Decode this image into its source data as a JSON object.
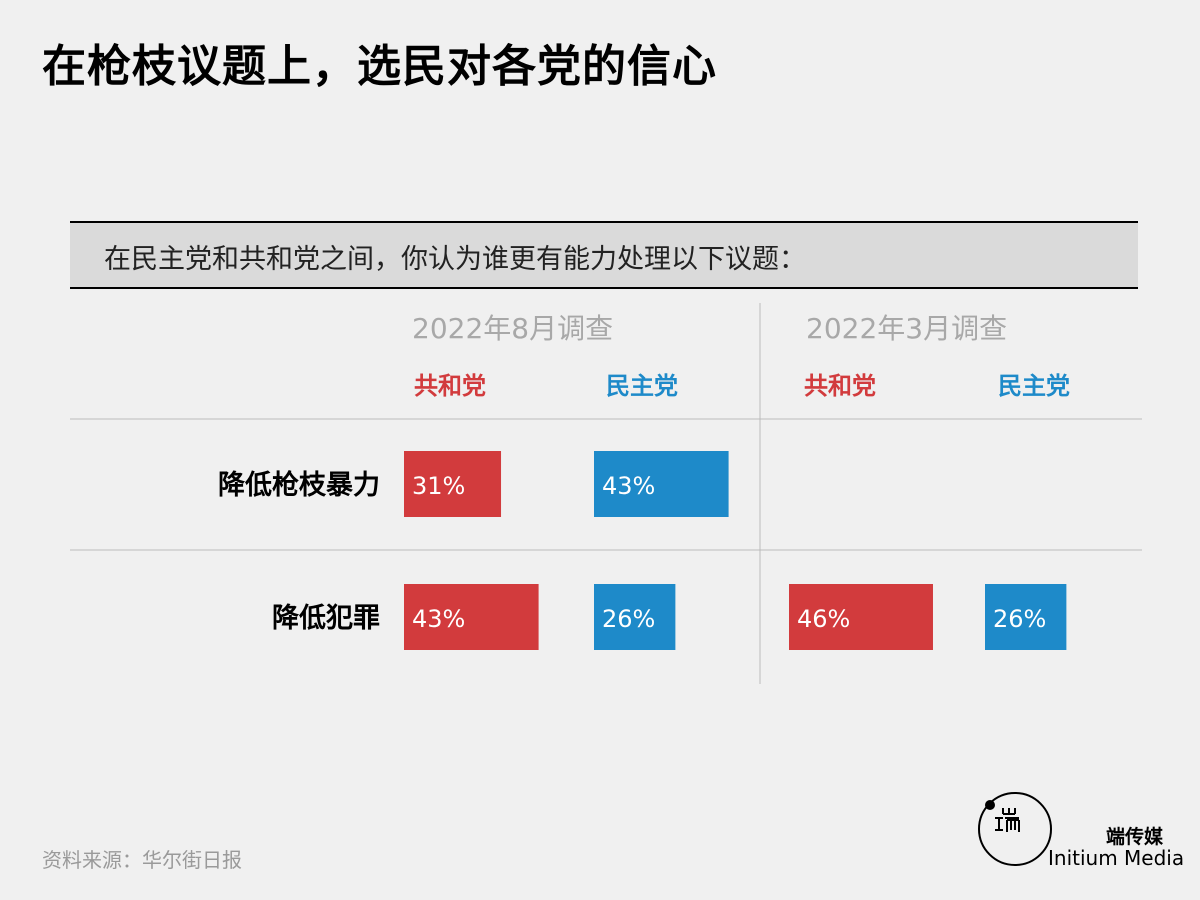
{
  "title": "在枪枝议题上，选民对各党的信心",
  "question": "在民主党和共和党之间，你认为谁更有能力处理以下议题：",
  "source": "资料来源：华尔街日报",
  "brand": {
    "cn": "端传媒",
    "en": "Initium Media"
  },
  "colors": {
    "republican": "#d23b3d",
    "democrat": "#1e8ac9",
    "background": "#f0f0f0"
  },
  "chart_data": {
    "type": "bar",
    "categories": [
      "降低枪枝暴力",
      "降低犯罪"
    ],
    "surveys": [
      {
        "name": "2022年8月调查",
        "series": [
          {
            "name": "共和党",
            "color": "#d23b3d",
            "values": [
              31,
              43
            ]
          },
          {
            "name": "民主党",
            "color": "#1e8ac9",
            "values": [
              43,
              26
            ]
          }
        ]
      },
      {
        "name": "2022年3月调查",
        "series": [
          {
            "name": "共和党",
            "color": "#d23b3d",
            "values": [
              null,
              46
            ]
          },
          {
            "name": "民主党",
            "color": "#1e8ac9",
            "values": [
              null,
              26
            ]
          }
        ]
      }
    ],
    "value_suffix": "%"
  }
}
